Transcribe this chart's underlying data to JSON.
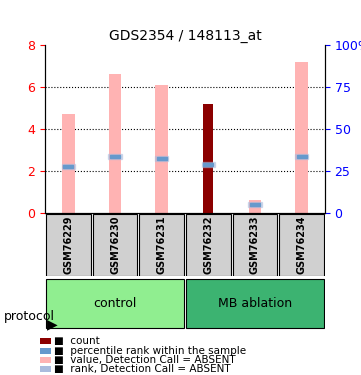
{
  "title": "GDS2354 / 148113_at",
  "samples": [
    "GSM76229",
    "GSM76230",
    "GSM76231",
    "GSM76232",
    "GSM76233",
    "GSM76234"
  ],
  "groups": [
    "control",
    "control",
    "control",
    "MB ablation",
    "MB ablation",
    "MB ablation"
  ],
  "pink_bars": [
    4.7,
    6.6,
    6.1,
    0.0,
    0.6,
    7.2
  ],
  "dark_red_bars": [
    0.0,
    0.0,
    0.0,
    5.2,
    0.0,
    0.0
  ],
  "blue_marks": [
    2.2,
    2.7,
    2.6,
    2.3,
    0.4,
    2.7
  ],
  "ylim": [
    0,
    8
  ],
  "yticks_left": [
    0,
    2,
    4,
    6,
    8
  ],
  "yticks_right": [
    0,
    25,
    50,
    75,
    100
  ],
  "bar_width": 0.18,
  "pink_color": "#FFB3B3",
  "dark_red_color": "#8B0000",
  "blue_color": "#6699CC",
  "light_blue_color": "#AABBDD",
  "group_colors": {
    "control": "#90EE90",
    "MB ablation": "#3CB371"
  },
  "group_bg_colors": [
    "#C8FFC8",
    "#90EE90"
  ],
  "legend_labels": [
    "count",
    "percentile rank within the sample",
    "value, Detection Call = ABSENT",
    "rank, Detection Call = ABSENT"
  ],
  "legend_colors": [
    "#8B0000",
    "#6699CC",
    "#FFB3B3",
    "#AABBDD"
  ],
  "protocol_label": "protocol"
}
